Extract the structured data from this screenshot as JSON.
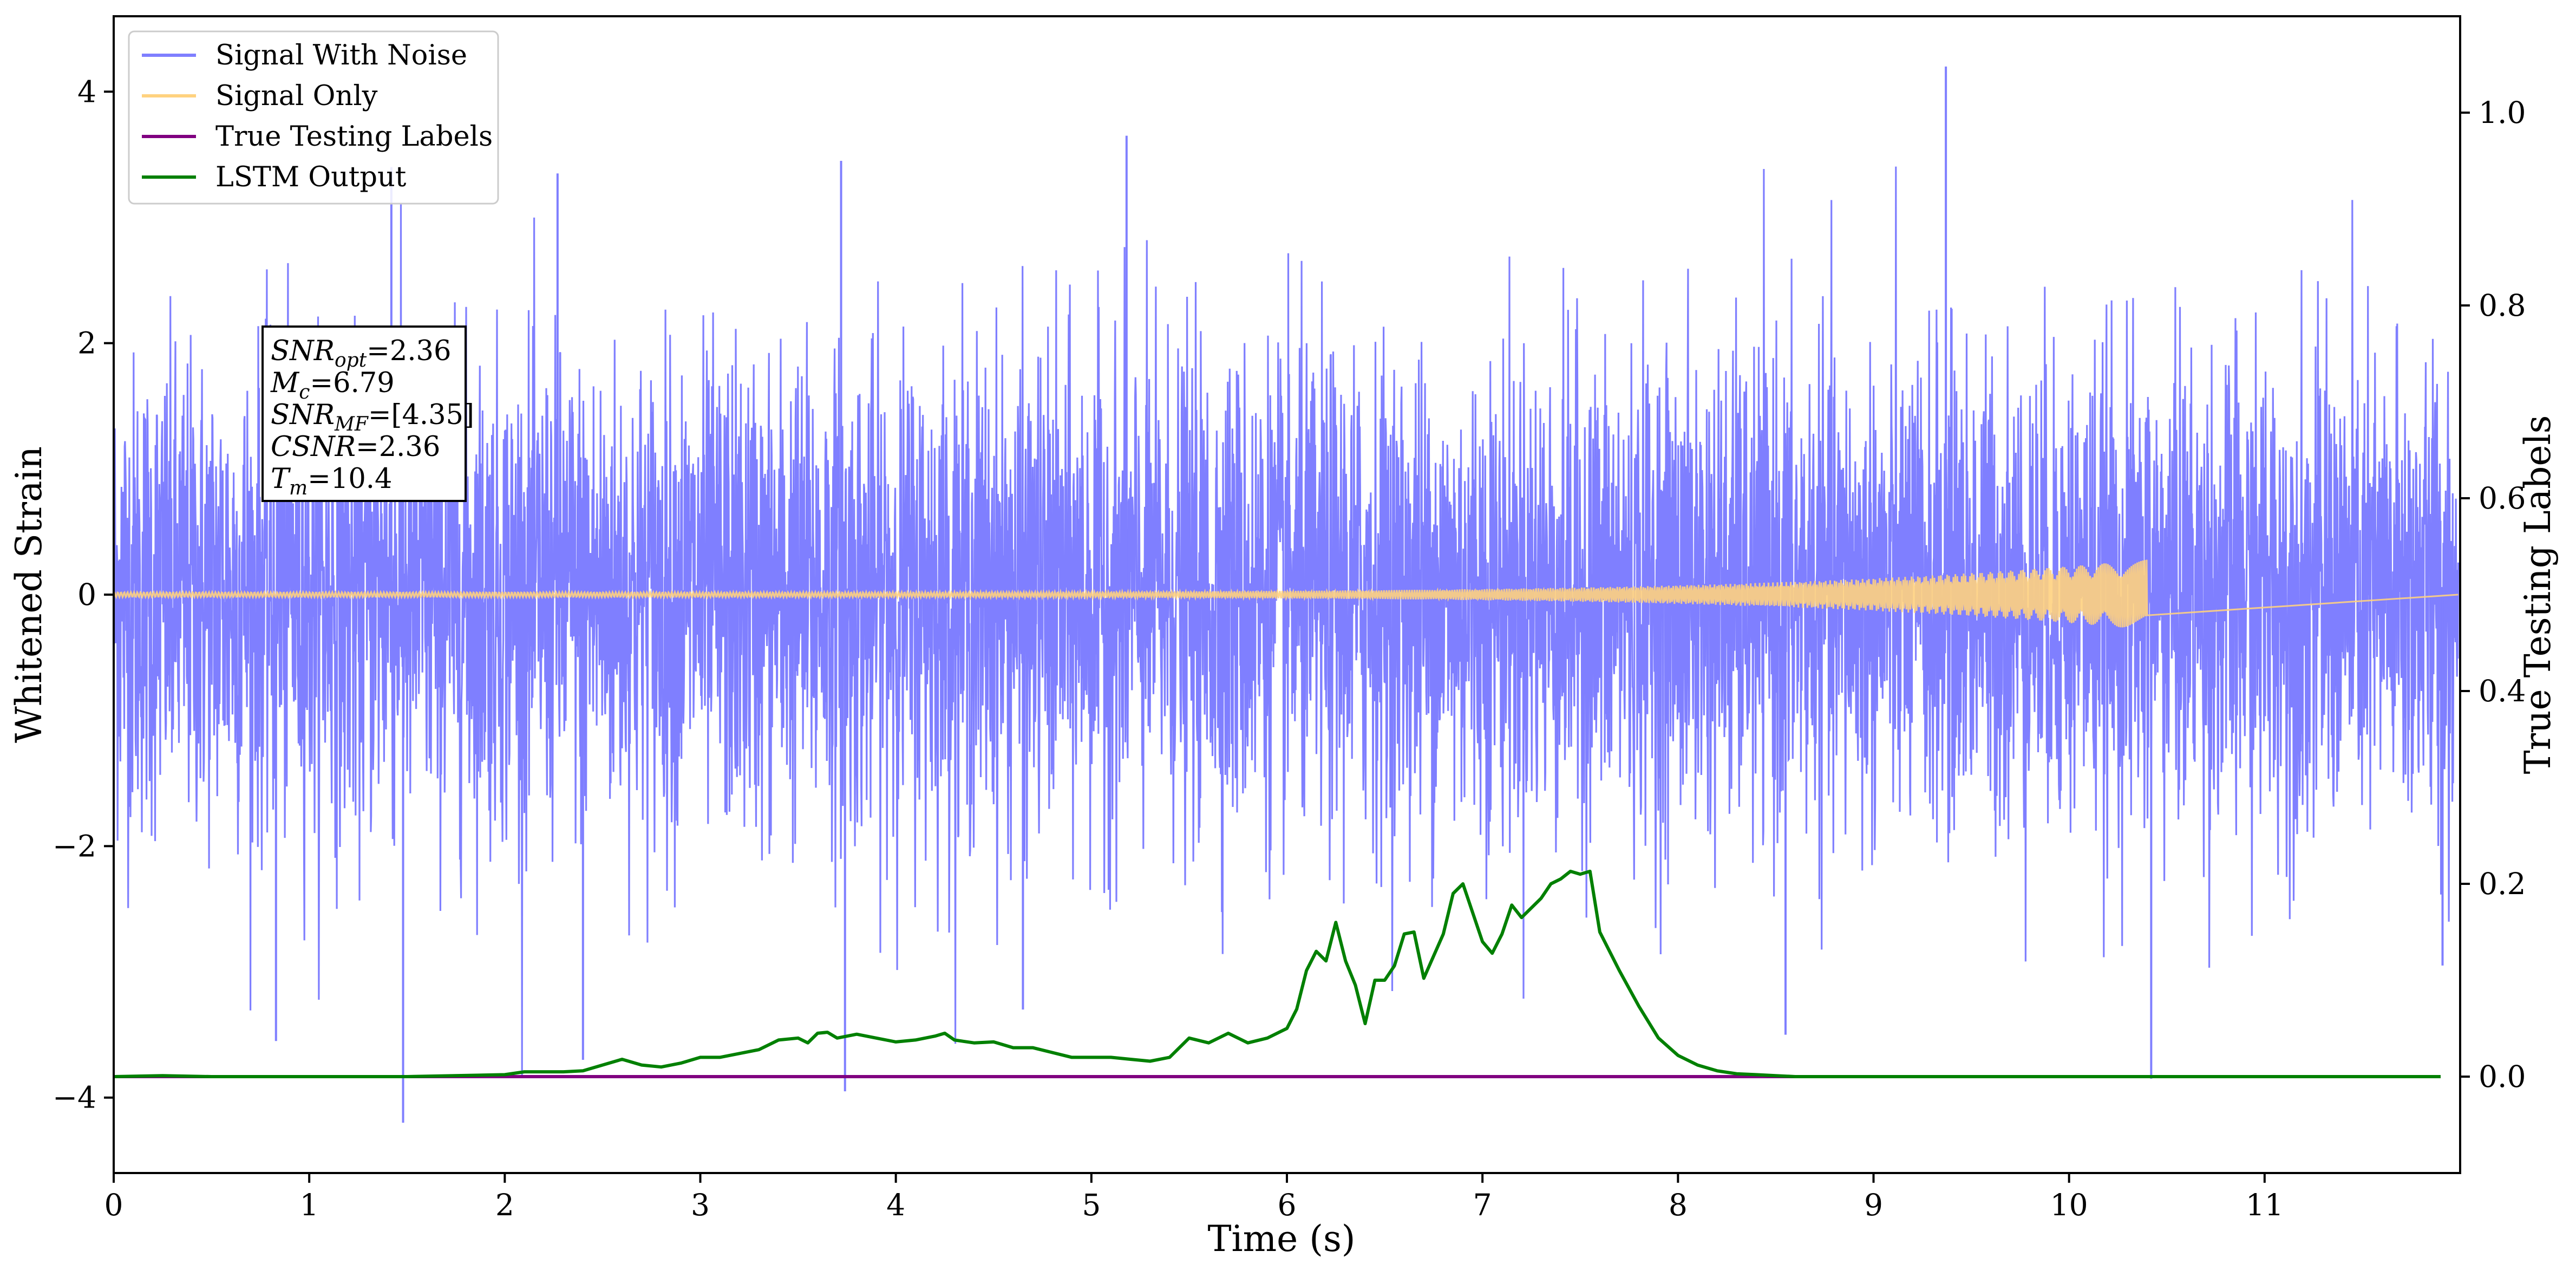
{
  "chart_data": {
    "type": "line",
    "title": "",
    "xlabel": "Time (s)",
    "ylabel": "Whitened Strain",
    "y2label": "True Testing Labels",
    "xlim": [
      0,
      12
    ],
    "ylim": [
      -4.6,
      4.6
    ],
    "y2lim": [
      -0.1,
      1.1
    ],
    "xticks": [
      0,
      1,
      2,
      3,
      4,
      5,
      6,
      7,
      8,
      9,
      10,
      11
    ],
    "yticks": [
      -4,
      -2,
      0,
      2,
      4
    ],
    "y2ticks": [
      0.0,
      0.2,
      0.4,
      0.6,
      0.8,
      1.0
    ],
    "grid": false,
    "legend": {
      "placement": "top-left"
    },
    "colors": {
      "noise": "#7f7fff",
      "signal": "#ffd27f",
      "labels": "#800080",
      "lstm": "#008000"
    },
    "series": [
      {
        "name": "Signal With Noise",
        "axis": "left",
        "color": "#7f7fff",
        "description_only": true,
        "noise_envelope": {
          "typical": 1.2,
          "max": 4.2,
          "min": -4.2
        },
        "spikes": [
          {
            "x": 1.48,
            "y": -4.2
          },
          {
            "x": 9.37,
            "y": 4.2
          },
          {
            "x": 3.74,
            "y": -3.95
          },
          {
            "x": 10.42,
            "y": -3.85
          },
          {
            "x": 0.83,
            "y": -3.55
          },
          {
            "x": 2.4,
            "y": -3.7
          },
          {
            "x": 4.65,
            "y": -3.3
          },
          {
            "x": 1.42,
            "y": 3.4
          },
          {
            "x": 2.27,
            "y": 3.35
          },
          {
            "x": 5.18,
            "y": 3.65
          },
          {
            "x": 3.72,
            "y": 3.45
          },
          {
            "x": 8.55,
            "y": -3.5
          },
          {
            "x": 11.91,
            "y": -2.95
          }
        ]
      },
      {
        "name": "Signal Only",
        "axis": "left",
        "color": "#ffd27f",
        "chirp": {
          "start": 0.0,
          "end": 10.4,
          "amplitude_start": 0.02,
          "amplitude_end": 0.28
        }
      },
      {
        "name": "True Testing Labels",
        "axis": "right",
        "color": "#800080",
        "x": [
          0,
          11.9
        ],
        "values": [
          0.0,
          0.0
        ]
      },
      {
        "name": "LSTM Output",
        "axis": "right",
        "color": "#008000",
        "x": [
          0,
          0.25,
          0.5,
          1,
          1.5,
          2,
          2.1,
          2.2,
          2.3,
          2.4,
          2.5,
          2.6,
          2.7,
          2.8,
          2.9,
          3.0,
          3.1,
          3.2,
          3.3,
          3.4,
          3.5,
          3.55,
          3.6,
          3.65,
          3.7,
          3.8,
          3.9,
          4.0,
          4.1,
          4.2,
          4.25,
          4.3,
          4.4,
          4.5,
          4.6,
          4.7,
          4.8,
          4.9,
          5.0,
          5.1,
          5.2,
          5.3,
          5.4,
          5.5,
          5.6,
          5.65,
          5.7,
          5.75,
          5.8,
          5.9,
          6.0,
          6.05,
          6.1,
          6.15,
          6.2,
          6.25,
          6.3,
          6.35,
          6.4,
          6.45,
          6.5,
          6.55,
          6.6,
          6.65,
          6.7,
          6.8,
          6.85,
          6.9,
          7.0,
          7.05,
          7.1,
          7.15,
          7.2,
          7.3,
          7.35,
          7.4,
          7.45,
          7.5,
          7.55,
          7.6,
          7.7,
          7.8,
          7.9,
          8.0,
          8.1,
          8.2,
          8.3,
          8.4,
          8.5,
          8.6,
          9.0,
          9.5,
          10.0,
          10.5,
          11.0,
          11.5,
          11.9
        ],
        "values": [
          0.0,
          0.001,
          0.0,
          0.0,
          0.0,
          0.002,
          0.005,
          0.005,
          0.005,
          0.006,
          0.012,
          0.018,
          0.012,
          0.01,
          0.014,
          0.02,
          0.02,
          0.024,
          0.028,
          0.038,
          0.04,
          0.035,
          0.045,
          0.046,
          0.04,
          0.044,
          0.04,
          0.036,
          0.038,
          0.042,
          0.045,
          0.038,
          0.035,
          0.036,
          0.03,
          0.03,
          0.025,
          0.02,
          0.02,
          0.02,
          0.018,
          0.016,
          0.02,
          0.04,
          0.035,
          0.04,
          0.045,
          0.04,
          0.035,
          0.04,
          0.05,
          0.07,
          0.11,
          0.13,
          0.12,
          0.16,
          0.12,
          0.095,
          0.055,
          0.1,
          0.1,
          0.115,
          0.148,
          0.15,
          0.102,
          0.148,
          0.19,
          0.2,
          0.14,
          0.128,
          0.148,
          0.178,
          0.165,
          0.185,
          0.2,
          0.205,
          0.213,
          0.21,
          0.213,
          0.15,
          0.11,
          0.073,
          0.04,
          0.022,
          0.012,
          0.006,
          0.003,
          0.002,
          0.001,
          0.0,
          0.0,
          0.0,
          0.0,
          0.0,
          0.0,
          0.0,
          0.0
        ]
      }
    ],
    "annotation": {
      "lines": [
        {
          "base": "SNR",
          "sub": "opt",
          "rest": "=2.36"
        },
        {
          "base": "M",
          "sub": "c",
          "rest": "=6.79"
        },
        {
          "base": "SNR",
          "sub": "MF",
          "rest": "=[4.35]"
        },
        {
          "base": "CSNR",
          "sub": "",
          "rest": "=2.36"
        },
        {
          "base": "T",
          "sub": "m",
          "rest": "=10.4"
        }
      ]
    }
  }
}
